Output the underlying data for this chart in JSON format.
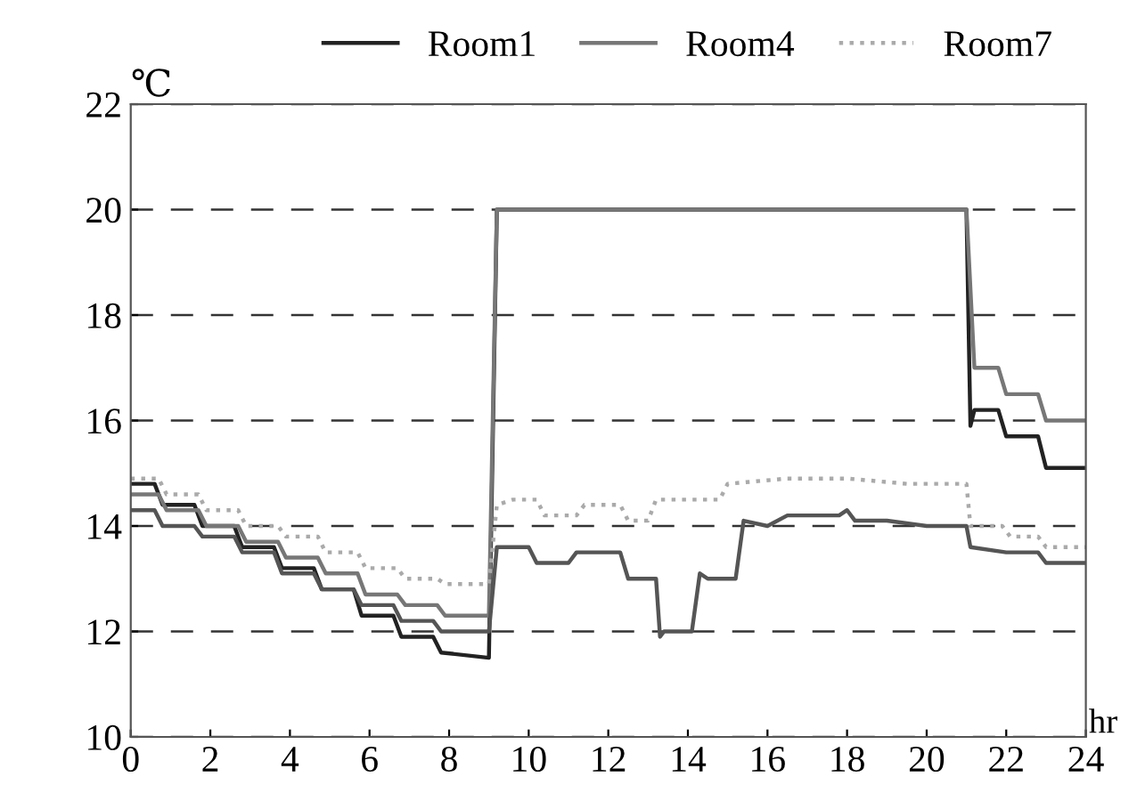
{
  "chart_data": {
    "type": "line",
    "xlabel": "hr",
    "ylabel": "℃",
    "xlim": [
      0,
      24
    ],
    "xticks": [
      0,
      2,
      4,
      6,
      8,
      10,
      12,
      14,
      16,
      18,
      20,
      22,
      24
    ],
    "ylim": [
      10,
      22
    ],
    "yticks": [
      10,
      12,
      14,
      16,
      18,
      20,
      22
    ],
    "grid": "y",
    "legend": "top right",
    "series": [
      {
        "name": "Room1",
        "color": "#222222",
        "line_style": "solid",
        "x": [
          0,
          0.6,
          0.8,
          1.6,
          1.8,
          2.6,
          2.8,
          3.6,
          3.8,
          4.6,
          4.8,
          5.6,
          5.8,
          6.6,
          6.8,
          7.6,
          7.8,
          9.0,
          9.2,
          21.0,
          21.1,
          21.2,
          21.8,
          22.0,
          22.8,
          23.0,
          24
        ],
        "values": [
          14.8,
          14.8,
          14.4,
          14.4,
          14.0,
          14.0,
          13.6,
          13.6,
          13.2,
          13.2,
          12.8,
          12.8,
          12.3,
          12.3,
          11.9,
          11.9,
          11.6,
          11.5,
          20,
          20,
          15.9,
          16.2,
          16.2,
          15.7,
          15.7,
          15.1,
          15.1
        ]
      },
      {
        "name": "Room4",
        "color": "#777777",
        "line_style": "solid",
        "x": [
          0,
          0.7,
          0.9,
          1.7,
          1.9,
          2.7,
          2.9,
          3.7,
          3.9,
          4.7,
          4.9,
          5.7,
          5.9,
          6.7,
          6.9,
          7.7,
          7.9,
          9.0,
          9.2,
          21.0,
          21.2,
          21.8,
          22.0,
          22.8,
          23.0,
          24
        ],
        "values": [
          14.6,
          14.6,
          14.3,
          14.3,
          14.0,
          14.0,
          13.7,
          13.7,
          13.4,
          13.4,
          13.1,
          13.1,
          12.7,
          12.7,
          12.5,
          12.5,
          12.3,
          12.3,
          20,
          20,
          17.0,
          17.0,
          16.5,
          16.5,
          16.0,
          16.0
        ]
      },
      {
        "name": "Room7",
        "color": "#aaaaaa",
        "line_style": "dotted",
        "x": [
          0,
          0.7,
          0.9,
          1.7,
          1.9,
          2.7,
          2.9,
          3.7,
          3.9,
          4.7,
          4.9,
          5.7,
          5.9,
          6.7,
          6.9,
          7.7,
          7.9,
          9.0,
          9.2,
          9.6,
          10.2,
          10.4,
          11.2,
          11.4,
          12.3,
          12.5,
          13.0,
          13.2,
          14.8,
          15.0,
          16.5,
          18.0,
          19.5,
          21.0,
          21.1,
          21.9,
          22.1,
          22.8,
          23.0,
          24
        ],
        "values": [
          14.9,
          14.9,
          14.6,
          14.6,
          14.3,
          14.3,
          14.0,
          14.0,
          13.8,
          13.8,
          13.5,
          13.5,
          13.2,
          13.2,
          13.0,
          13.0,
          12.9,
          12.9,
          14.4,
          14.5,
          14.5,
          14.2,
          14.2,
          14.4,
          14.4,
          14.1,
          14.1,
          14.5,
          14.5,
          14.8,
          14.9,
          14.9,
          14.8,
          14.8,
          14.0,
          14.0,
          13.8,
          13.8,
          13.6,
          13.6
        ]
      },
      {
        "color": "#555555",
        "line_style": "solid",
        "x": [
          0,
          0.6,
          0.8,
          1.6,
          1.8,
          2.6,
          2.8,
          3.6,
          3.8,
          4.6,
          4.8,
          5.6,
          5.8,
          6.6,
          6.8,
          7.6,
          7.8,
          9.0,
          9.2,
          10.0,
          10.2,
          11.0,
          11.2,
          12.3,
          12.5,
          13.2,
          13.3,
          13.4,
          14.1,
          14.3,
          14.5,
          15.2,
          15.4,
          16.0,
          16.5,
          17.8,
          18.0,
          18.2,
          19.0,
          20.0,
          21.0,
          21.1,
          22.0,
          22.8,
          23.0,
          24
        ],
        "values": [
          14.3,
          14.3,
          14.0,
          14.0,
          13.8,
          13.8,
          13.5,
          13.5,
          13.1,
          13.1,
          12.8,
          12.8,
          12.5,
          12.5,
          12.2,
          12.2,
          12.0,
          12.0,
          13.6,
          13.6,
          13.3,
          13.3,
          13.5,
          13.5,
          13.0,
          13.0,
          11.9,
          12.0,
          12.0,
          13.1,
          13.0,
          13.0,
          14.1,
          14.0,
          14.2,
          14.2,
          14.3,
          14.1,
          14.1,
          14.0,
          14.0,
          13.6,
          13.5,
          13.5,
          13.3,
          13.3
        ]
      }
    ]
  }
}
